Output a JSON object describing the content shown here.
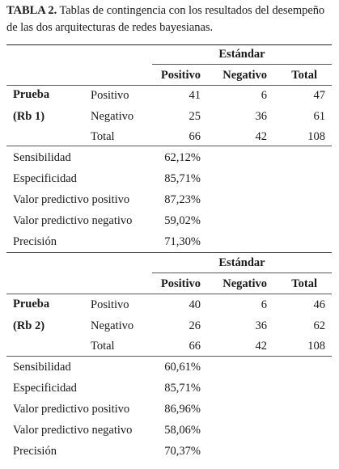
{
  "caption": {
    "label": "TABLA 2.",
    "text": " Tablas de contingencia con los resultados del desempeño de las dos arquitecturas de redes bayesianas."
  },
  "tables": [
    {
      "group_header": "Estándar",
      "columns": [
        "Positivo",
        "Negativo",
        "Total"
      ],
      "row_label_lines": [
        "Prueba",
        "(Rb 1)"
      ],
      "rows": [
        {
          "label": "Positivo",
          "values": [
            "41",
            "6",
            "47"
          ]
        },
        {
          "label": "Negativo",
          "values": [
            "25",
            "36",
            "61"
          ]
        },
        {
          "label": "Total",
          "values": [
            "66",
            "42",
            "108"
          ]
        }
      ],
      "metrics": [
        {
          "name": "Sensibilidad",
          "value": "62,12%"
        },
        {
          "name": "Especificidad",
          "value": "85,71%"
        },
        {
          "name": "Valor predictivo positivo",
          "value": "87,23%"
        },
        {
          "name": "Valor predictivo negativo",
          "value": "59,02%"
        },
        {
          "name": "Precisión",
          "value": "71,30%"
        }
      ]
    },
    {
      "group_header": "Estándar",
      "columns": [
        "Positivo",
        "Negativo",
        "Total"
      ],
      "row_label_lines": [
        "Prueba",
        "(Rb 2)"
      ],
      "rows": [
        {
          "label": "Positivo",
          "values": [
            "40",
            "6",
            "46"
          ]
        },
        {
          "label": "Negativo",
          "values": [
            "26",
            "36",
            "62"
          ]
        },
        {
          "label": "Total",
          "values": [
            "66",
            "42",
            "108"
          ]
        }
      ],
      "metrics": [
        {
          "name": "Sensibilidad",
          "value": "60,61%"
        },
        {
          "name": "Especificidad",
          "value": "85,71%"
        },
        {
          "name": "Valor predictivo positivo",
          "value": "86,96%"
        },
        {
          "name": "Valor predictivo negativo",
          "value": "58,06%"
        },
        {
          "name": "Precisión",
          "value": "70,37%"
        }
      ]
    }
  ]
}
